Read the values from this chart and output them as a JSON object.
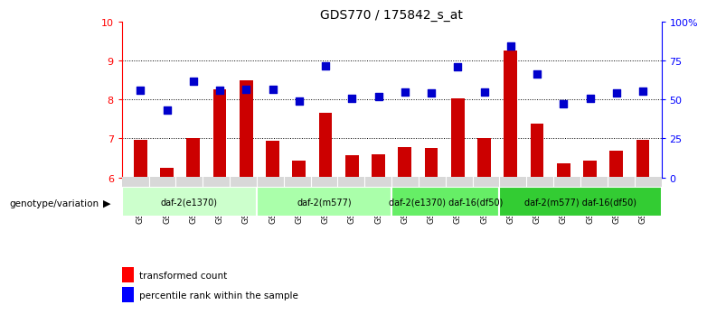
{
  "title": "GDS770 / 175842_s_at",
  "categories": [
    "GSM28389",
    "GSM28390",
    "GSM28391",
    "GSM28392",
    "GSM28393",
    "GSM28394",
    "GSM28395",
    "GSM28396",
    "GSM28397",
    "GSM28398",
    "GSM28399",
    "GSM28400",
    "GSM28401",
    "GSM28402",
    "GSM28403",
    "GSM28404",
    "GSM28405",
    "GSM28406",
    "GSM28407",
    "GSM28408"
  ],
  "red_values": [
    6.97,
    6.25,
    7.02,
    8.27,
    8.49,
    6.95,
    6.42,
    7.65,
    6.56,
    6.59,
    6.78,
    6.75,
    8.02,
    7.01,
    9.27,
    7.37,
    6.36,
    6.44,
    6.69,
    6.96
  ],
  "blue_values": [
    8.25,
    7.72,
    8.47,
    8.25,
    8.27,
    8.27,
    7.97,
    8.86,
    8.02,
    8.07,
    8.19,
    8.17,
    8.85,
    8.2,
    9.38,
    8.65,
    7.88,
    8.02,
    8.18,
    8.22
  ],
  "ylim": [
    6,
    10
  ],
  "yticks_left": [
    6,
    7,
    8,
    9,
    10
  ],
  "yticks_right": [
    0,
    25,
    50,
    75,
    100
  ],
  "ytick_right_labels": [
    "0",
    "25",
    "50",
    "75",
    "100%"
  ],
  "groups": [
    {
      "label": "daf-2(e1370)",
      "start": 0,
      "end": 5,
      "color": "#ccffcc"
    },
    {
      "label": "daf-2(m577)",
      "start": 5,
      "end": 10,
      "color": "#aaffaa"
    },
    {
      "label": "daf-2(e1370) daf-16(df50)",
      "start": 10,
      "end": 14,
      "color": "#66ee66"
    },
    {
      "label": "daf-2(m577) daf-16(df50)",
      "start": 14,
      "end": 20,
      "color": "#33cc33"
    }
  ],
  "bar_color": "#cc0000",
  "dot_color": "#0000cc",
  "bar_width": 0.5,
  "dot_size": 28,
  "bg_color": "#ffffff",
  "label_red": "transformed count",
  "label_blue": "percentile rank within the sample",
  "genotype_label": "genotype/variation",
  "title_color": "#000000",
  "title_fontsize": 10
}
